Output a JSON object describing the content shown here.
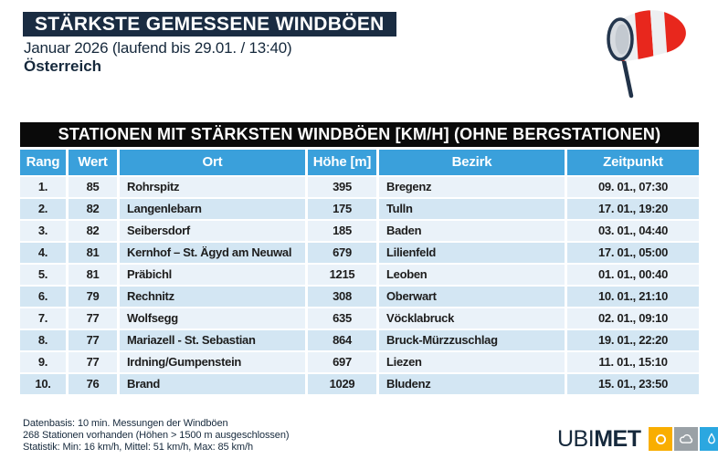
{
  "header": {
    "title": "STÄRKSTE GEMESSENE WINDBÖEN",
    "subtitle": "Januar 2026 (laufend bis 29.01. / 13:40)",
    "region": "Österreich"
  },
  "icons": {
    "windsock": "windsock-icon",
    "logo_sun": "sun-icon",
    "logo_cloud": "cloud-icon",
    "logo_drop": "droplet-icon"
  },
  "table": {
    "title": "STATIONEN MIT STÄRKSTEN WINDBÖEN [KM/H] (OHNE BERGSTATIONEN)",
    "columns": [
      "Rang",
      "Wert",
      "Ort",
      "Höhe [m]",
      "Bezirk",
      "Zeitpunkt"
    ],
    "rows": [
      {
        "rank": "1.",
        "wert": 85,
        "ort": "Rohrspitz",
        "hoehe": 395,
        "bezirk": "Bregenz",
        "zeitpunkt": "09. 01., 07:30"
      },
      {
        "rank": "2.",
        "wert": 82,
        "ort": "Langenlebarn",
        "hoehe": 175,
        "bezirk": "Tulln",
        "zeitpunkt": "17. 01., 19:20"
      },
      {
        "rank": "3.",
        "wert": 82,
        "ort": "Seibersdorf",
        "hoehe": 185,
        "bezirk": "Baden",
        "zeitpunkt": "03. 01., 04:40"
      },
      {
        "rank": "4.",
        "wert": 81,
        "ort": "Kernhof – St. Ägyd am Neuwal",
        "hoehe": 679,
        "bezirk": "Lilienfeld",
        "zeitpunkt": "17. 01., 05:00"
      },
      {
        "rank": "5.",
        "wert": 81,
        "ort": "Präbichl",
        "hoehe": 1215,
        "bezirk": "Leoben",
        "zeitpunkt": "01. 01., 00:40"
      },
      {
        "rank": "6.",
        "wert": 79,
        "ort": "Rechnitz",
        "hoehe": 308,
        "bezirk": "Oberwart",
        "zeitpunkt": "10. 01., 21:10"
      },
      {
        "rank": "7.",
        "wert": 77,
        "ort": "Wolfsegg",
        "hoehe": 635,
        "bezirk": "Vöcklabruck",
        "zeitpunkt": "02. 01., 09:10"
      },
      {
        "rank": "8.",
        "wert": 77,
        "ort": "Mariazell - St. Sebastian",
        "hoehe": 864,
        "bezirk": "Bruck-Mürzzuschlag",
        "zeitpunkt": "19. 01., 22:20"
      },
      {
        "rank": "9.",
        "wert": 77,
        "ort": "Irdning/Gumpenstein",
        "hoehe": 697,
        "bezirk": "Liezen",
        "zeitpunkt": "11. 01., 15:10"
      },
      {
        "rank": "10.",
        "wert": 76,
        "ort": "Brand",
        "hoehe": 1029,
        "bezirk": "Bludenz",
        "zeitpunkt": "15. 01., 23:50"
      }
    ]
  },
  "footer": {
    "lines": [
      "Datenbasis: 10 min. Messungen der Windböen",
      "268 Stationen vorhanden (Höhen > 1500 m ausgeschlossen)",
      "Statistik: Min: 16 km/h, Mittel: 51 km/h, Max: 85 km/h"
    ]
  },
  "logo": {
    "ubi": "UBI",
    "met": "MET"
  },
  "colors": {
    "navy": "#1a2c42",
    "text_navy": "#16293c",
    "table_title_bg": "#0a0a0a",
    "header_blue": "#3aa0db",
    "row_light": "#eaf2f9",
    "row_dark": "#d3e6f3",
    "windsock_red": "#e8271d",
    "logo_orange": "#f9ae00",
    "logo_gray": "#9aa1a6",
    "logo_blue": "#2ba7e0"
  }
}
